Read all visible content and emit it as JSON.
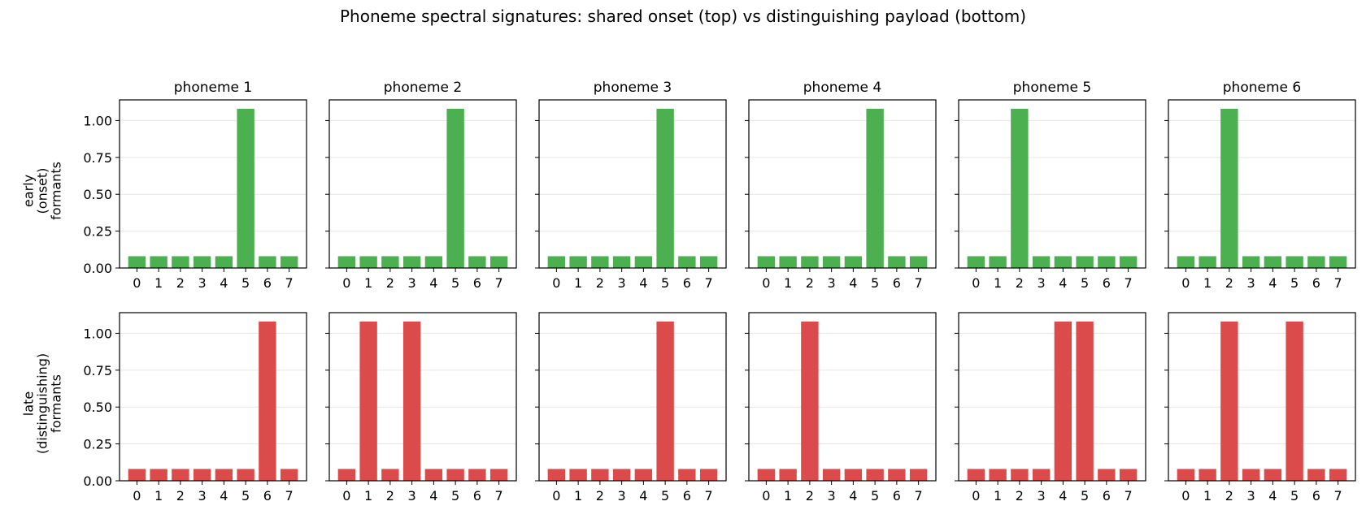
{
  "title": "Phoneme spectral signatures: shared onset (top) vs distinguishing payload (bottom)",
  "row_labels": [
    "early\n(onset)\nformants",
    "late\n(distinguishing)\nformants"
  ],
  "colors": {
    "onset": "#4caf50",
    "payload": "#dc4b4b",
    "grid": "#e6e6e6",
    "axis": "#000000"
  },
  "chart_data": [
    {
      "type": "bar",
      "row": "onset",
      "title": "phoneme 1",
      "categories": [
        "0",
        "1",
        "2",
        "3",
        "4",
        "5",
        "6",
        "7"
      ],
      "values": [
        0.08,
        0.08,
        0.08,
        0.08,
        0.08,
        1.08,
        0.08,
        0.08
      ],
      "ylim": [
        0,
        1.14
      ],
      "yticks": [
        "0.00",
        "0.25",
        "0.50",
        "0.75",
        "1.00"
      ],
      "grid": "y"
    },
    {
      "type": "bar",
      "row": "onset",
      "title": "phoneme 2",
      "categories": [
        "0",
        "1",
        "2",
        "3",
        "4",
        "5",
        "6",
        "7"
      ],
      "values": [
        0.08,
        0.08,
        0.08,
        0.08,
        0.08,
        1.08,
        0.08,
        0.08
      ],
      "ylim": [
        0,
        1.14
      ],
      "grid": "y"
    },
    {
      "type": "bar",
      "row": "onset",
      "title": "phoneme 3",
      "categories": [
        "0",
        "1",
        "2",
        "3",
        "4",
        "5",
        "6",
        "7"
      ],
      "values": [
        0.08,
        0.08,
        0.08,
        0.08,
        0.08,
        1.08,
        0.08,
        0.08
      ],
      "ylim": [
        0,
        1.14
      ],
      "grid": "y"
    },
    {
      "type": "bar",
      "row": "onset",
      "title": "phoneme 4",
      "categories": [
        "0",
        "1",
        "2",
        "3",
        "4",
        "5",
        "6",
        "7"
      ],
      "values": [
        0.08,
        0.08,
        0.08,
        0.08,
        0.08,
        1.08,
        0.08,
        0.08
      ],
      "ylim": [
        0,
        1.14
      ],
      "grid": "y"
    },
    {
      "type": "bar",
      "row": "onset",
      "title": "phoneme 5",
      "categories": [
        "0",
        "1",
        "2",
        "3",
        "4",
        "5",
        "6",
        "7"
      ],
      "values": [
        0.08,
        0.08,
        1.08,
        0.08,
        0.08,
        0.08,
        0.08,
        0.08
      ],
      "ylim": [
        0,
        1.14
      ],
      "grid": "y"
    },
    {
      "type": "bar",
      "row": "onset",
      "title": "phoneme 6",
      "categories": [
        "0",
        "1",
        "2",
        "3",
        "4",
        "5",
        "6",
        "7"
      ],
      "values": [
        0.08,
        0.08,
        1.08,
        0.08,
        0.08,
        0.08,
        0.08,
        0.08
      ],
      "ylim": [
        0,
        1.14
      ],
      "grid": "y"
    },
    {
      "type": "bar",
      "row": "payload",
      "title": "",
      "categories": [
        "0",
        "1",
        "2",
        "3",
        "4",
        "5",
        "6",
        "7"
      ],
      "values": [
        0.08,
        0.08,
        0.08,
        0.08,
        0.08,
        0.08,
        1.08,
        0.08
      ],
      "ylim": [
        0,
        1.14
      ],
      "yticks": [
        "0.00",
        "0.25",
        "0.50",
        "0.75",
        "1.00"
      ],
      "grid": "y"
    },
    {
      "type": "bar",
      "row": "payload",
      "title": "",
      "categories": [
        "0",
        "1",
        "2",
        "3",
        "4",
        "5",
        "6",
        "7"
      ],
      "values": [
        0.08,
        1.08,
        0.08,
        1.08,
        0.08,
        0.08,
        0.08,
        0.08
      ],
      "ylim": [
        0,
        1.14
      ],
      "grid": "y"
    },
    {
      "type": "bar",
      "row": "payload",
      "title": "",
      "categories": [
        "0",
        "1",
        "2",
        "3",
        "4",
        "5",
        "6",
        "7"
      ],
      "values": [
        0.08,
        0.08,
        0.08,
        0.08,
        0.08,
        1.08,
        0.08,
        0.08
      ],
      "ylim": [
        0,
        1.14
      ],
      "grid": "y"
    },
    {
      "type": "bar",
      "row": "payload",
      "title": "",
      "categories": [
        "0",
        "1",
        "2",
        "3",
        "4",
        "5",
        "6",
        "7"
      ],
      "values": [
        0.08,
        0.08,
        1.08,
        0.08,
        0.08,
        0.08,
        0.08,
        0.08
      ],
      "ylim": [
        0,
        1.14
      ],
      "grid": "y"
    },
    {
      "type": "bar",
      "row": "payload",
      "title": "",
      "categories": [
        "0",
        "1",
        "2",
        "3",
        "4",
        "5",
        "6",
        "7"
      ],
      "values": [
        0.08,
        0.08,
        0.08,
        0.08,
        1.08,
        1.08,
        0.08,
        0.08
      ],
      "ylim": [
        0,
        1.14
      ],
      "grid": "y"
    },
    {
      "type": "bar",
      "row": "payload",
      "title": "",
      "categories": [
        "0",
        "1",
        "2",
        "3",
        "4",
        "5",
        "6",
        "7"
      ],
      "values": [
        0.08,
        0.08,
        1.08,
        0.08,
        0.08,
        1.08,
        0.08,
        0.08
      ],
      "ylim": [
        0,
        1.14
      ],
      "grid": "y"
    }
  ]
}
